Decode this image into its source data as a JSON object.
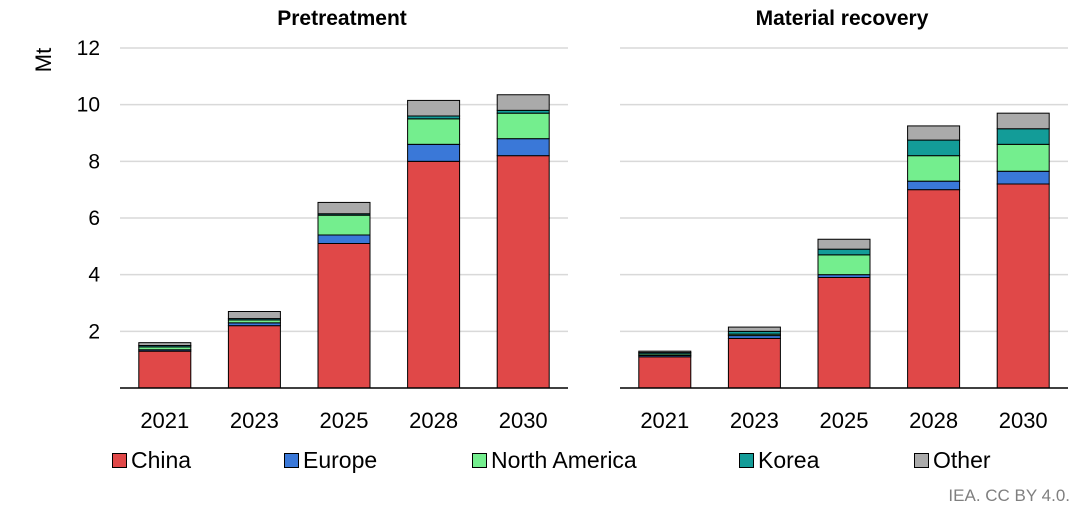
{
  "chart_data": {
    "type": "bar",
    "stacked": true,
    "ylabel": "Mt",
    "ylim": [
      0,
      12
    ],
    "yticks": [
      "2",
      "4",
      "6",
      "8",
      "10",
      "12"
    ],
    "grid": true,
    "legend_position": "bottom",
    "colors": {
      "China": "#e04848",
      "Europe": "#3a78d8",
      "North America": "#74ee8e",
      "Korea": "#139c98",
      "Other": "#aaaaaa"
    },
    "legend": [
      "China",
      "Europe",
      "North America",
      "Korea",
      "Other"
    ],
    "panels": [
      {
        "title": "Pretreatment",
        "categories": [
          "2021",
          "2023",
          "2025",
          "2028",
          "2030"
        ],
        "series": [
          {
            "name": "China",
            "values": [
              1.3,
              2.2,
              5.1,
              8.0,
              8.2
            ]
          },
          {
            "name": "Europe",
            "values": [
              0.05,
              0.1,
              0.3,
              0.6,
              0.6
            ]
          },
          {
            "name": "North America",
            "values": [
              0.1,
              0.1,
              0.7,
              0.9,
              0.9
            ]
          },
          {
            "name": "Korea",
            "values": [
              0.05,
              0.05,
              0.05,
              0.1,
              0.1
            ]
          },
          {
            "name": "Other",
            "values": [
              0.1,
              0.25,
              0.4,
              0.55,
              0.55
            ]
          }
        ]
      },
      {
        "title": "Material recovery",
        "categories": [
          "2021",
          "2023",
          "2025",
          "2028",
          "2030"
        ],
        "series": [
          {
            "name": "China",
            "values": [
              1.1,
              1.75,
              3.9,
              7.0,
              7.2
            ]
          },
          {
            "name": "Europe",
            "values": [
              0.05,
              0.1,
              0.1,
              0.3,
              0.45
            ]
          },
          {
            "name": "North America",
            "values": [
              0.05,
              0.05,
              0.7,
              0.9,
              0.95
            ]
          },
          {
            "name": "Korea",
            "values": [
              0.05,
              0.1,
              0.2,
              0.55,
              0.55
            ]
          },
          {
            "name": "Other",
            "values": [
              0.05,
              0.15,
              0.35,
              0.5,
              0.55
            ]
          }
        ]
      }
    ]
  },
  "footer": {
    "credit": "IEA. CC BY 4.0."
  }
}
